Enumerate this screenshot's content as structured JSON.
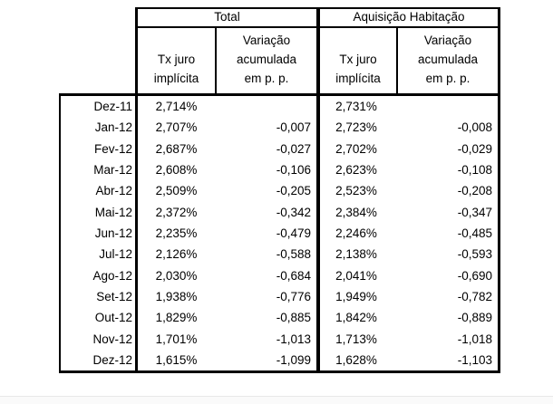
{
  "page": {
    "background": "#ffffff",
    "border_color": "#000000",
    "bottom_strip_color": "#fafafa"
  },
  "table": {
    "groups": [
      {
        "label": "Total"
      },
      {
        "label": "Aquisição Habitação"
      }
    ],
    "sub_columns": {
      "rate_label": "Tx juro\nimplícita",
      "variation_label": "Variação\nacumulada\nem p. p."
    },
    "rows": [
      {
        "date": "Dez-11",
        "total_tx": "2,714%",
        "total_var": "",
        "ah_tx": "2,731%",
        "ah_var": ""
      },
      {
        "date": "Jan-12",
        "total_tx": "2,707%",
        "total_var": "-0,007",
        "ah_tx": "2,723%",
        "ah_var": "-0,008"
      },
      {
        "date": "Fev-12",
        "total_tx": "2,687%",
        "total_var": "-0,027",
        "ah_tx": "2,702%",
        "ah_var": "-0,029"
      },
      {
        "date": "Mar-12",
        "total_tx": "2,608%",
        "total_var": "-0,106",
        "ah_tx": "2,623%",
        "ah_var": "-0,108"
      },
      {
        "date": "Abr-12",
        "total_tx": "2,509%",
        "total_var": "-0,205",
        "ah_tx": "2,523%",
        "ah_var": "-0,208"
      },
      {
        "date": "Mai-12",
        "total_tx": "2,372%",
        "total_var": "-0,342",
        "ah_tx": "2,384%",
        "ah_var": "-0,347"
      },
      {
        "date": "Jun-12",
        "total_tx": "2,235%",
        "total_var": "-0,479",
        "ah_tx": "2,246%",
        "ah_var": "-0,485"
      },
      {
        "date": "Jul-12",
        "total_tx": "2,126%",
        "total_var": "-0,588",
        "ah_tx": "2,138%",
        "ah_var": "-0,593"
      },
      {
        "date": "Ago-12",
        "total_tx": "2,030%",
        "total_var": "-0,684",
        "ah_tx": "2,041%",
        "ah_var": "-0,690"
      },
      {
        "date": "Set-12",
        "total_tx": "1,938%",
        "total_var": "-0,776",
        "ah_tx": "1,949%",
        "ah_var": "-0,782"
      },
      {
        "date": "Out-12",
        "total_tx": "1,829%",
        "total_var": "-0,885",
        "ah_tx": "1,842%",
        "ah_var": "-0,889"
      },
      {
        "date": "Nov-12",
        "total_tx": "1,701%",
        "total_var": "-1,013",
        "ah_tx": "1,713%",
        "ah_var": "-1,018"
      },
      {
        "date": "Dez-12",
        "total_tx": "1,615%",
        "total_var": "-1,099",
        "ah_tx": "1,628%",
        "ah_var": "-1,103"
      }
    ]
  }
}
